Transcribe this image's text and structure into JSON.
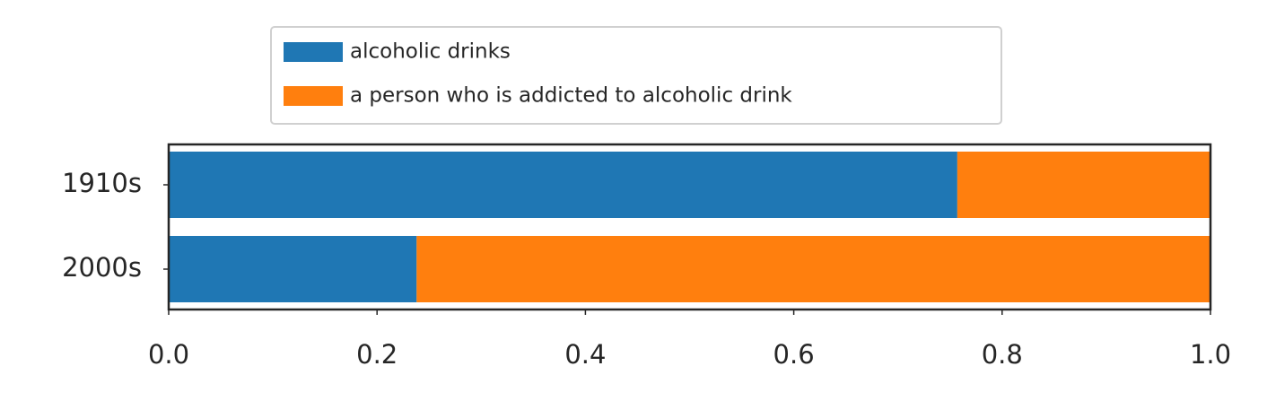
{
  "chart_data": {
    "type": "barh_stacked",
    "categories": [
      "1910s",
      "2000s"
    ],
    "series": [
      {
        "name": "alcoholic drinks",
        "color": "#1f77b4",
        "values": [
          0.757,
          0.238
        ]
      },
      {
        "name": "a person who is addicted to alcoholic drink",
        "color": "#ff7f0e",
        "values": [
          0.243,
          0.762
        ]
      }
    ],
    "xlim": [
      0,
      1
    ],
    "xticks": [
      {
        "value": 0,
        "label": "0.0"
      },
      {
        "value": 0.2,
        "label": "0.2"
      },
      {
        "value": 0.4,
        "label": "0.4"
      },
      {
        "value": 0.6,
        "label": "0.6"
      },
      {
        "value": 0.8,
        "label": "0.8"
      },
      {
        "value": 1,
        "label": "1.0"
      }
    ],
    "legend": "upper center"
  }
}
